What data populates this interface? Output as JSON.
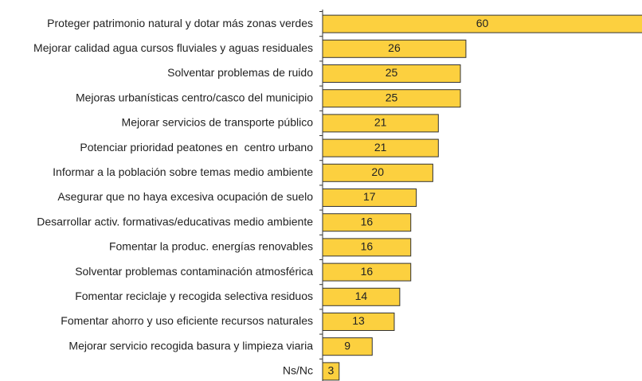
{
  "chart_data": {
    "type": "bar",
    "orientation": "horizontal",
    "color": "#fcd03f",
    "categories": [
      "Proteger patrimonio natural y dotar más zonas verdes",
      "Mejorar calidad agua cursos fluviales y aguas residuales",
      "Solventar problemas de ruido",
      "Mejoras urbanísticas centro/casco del municipio",
      "Mejorar servicios de transporte público",
      "Potenciar prioridad peatones en  centro urbano",
      "Informar a la población sobre temas medio ambiente",
      "Asegurar que no haya excesiva ocupación de suelo",
      "Desarrollar activ. formativas/educativas medio ambiente",
      "Fomentar la produc. energías renovables",
      "Solventar problemas contaminación atmosférica",
      "Fomentar reciclaje y recogida selectiva residuos",
      "Fomentar ahorro y uso eficiente recursos naturales",
      "Mejorar servicio recogida basura y limpieza viaria",
      "Ns/Nc"
    ],
    "values": [
      60,
      26,
      25,
      25,
      21,
      21,
      20,
      17,
      16,
      16,
      16,
      14,
      13,
      9,
      3
    ]
  }
}
